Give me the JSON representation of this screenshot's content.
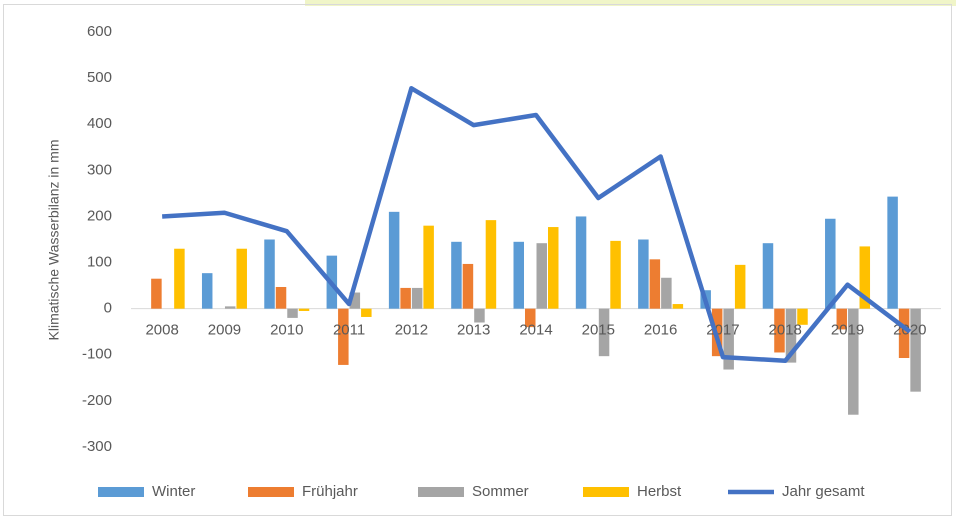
{
  "chart_data": {
    "type": "bar_line",
    "y_label": "Klimatische Wasserbilanz in mm",
    "categories": [
      "2008",
      "2009",
      "2010",
      "2011",
      "2012",
      "2013",
      "2014",
      "2015",
      "2016",
      "2017",
      "2018",
      "2019",
      "2020"
    ],
    "series": [
      {
        "name": "Winter",
        "color": "#5b9bd5",
        "type": "bar",
        "values": [
          0,
          77,
          150,
          115,
          210,
          145,
          145,
          200,
          150,
          40,
          142,
          195,
          243
        ]
      },
      {
        "name": "Frühjahr",
        "color": "#ed7d31",
        "type": "bar",
        "values": [
          65,
          0,
          47,
          -122,
          45,
          97,
          -40,
          0,
          107,
          -103,
          -95,
          -45,
          -107
        ]
      },
      {
        "name": "Sommer",
        "color": "#a5a5a5",
        "type": "bar",
        "values": [
          0,
          5,
          -20,
          35,
          45,
          -30,
          142,
          -103,
          67,
          -132,
          -117,
          -230,
          -180
        ]
      },
      {
        "name": "Herbst",
        "color": "#ffc000",
        "type": "bar",
        "values": [
          130,
          130,
          -5,
          -18,
          180,
          192,
          177,
          147,
          10,
          95,
          -35,
          135,
          0
        ]
      },
      {
        "name": "Jahr gesamt",
        "color": "#4472c4",
        "type": "line",
        "values": [
          200,
          208,
          168,
          10,
          478,
          398,
          420,
          240,
          330,
          -105,
          -113,
          52,
          -50
        ]
      }
    ],
    "ylim": [
      -300,
      600
    ],
    "yticks": [
      -300,
      -200,
      -100,
      0,
      100,
      200,
      300,
      400,
      500,
      600
    ],
    "legend": "bottom"
  }
}
